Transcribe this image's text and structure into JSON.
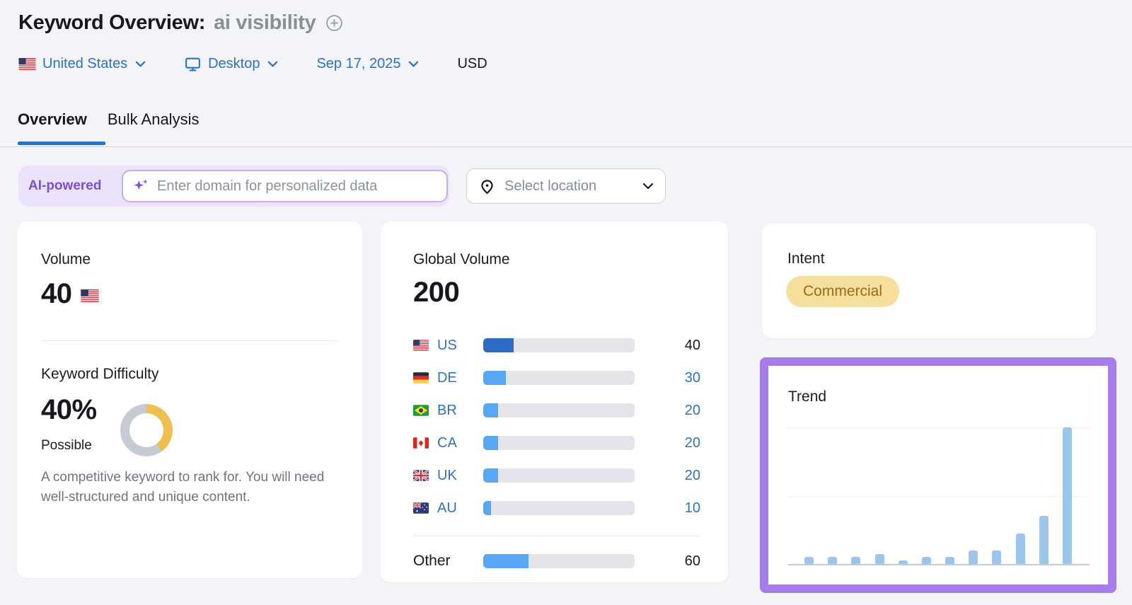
{
  "header": {
    "title": "Keyword Overview:",
    "keyword": "ai visibility",
    "add_icon": "plus-circle-icon",
    "filters": {
      "country": "United States",
      "country_flag_icon": "us-flag-icon",
      "device": "Desktop",
      "device_icon": "monitor-icon",
      "date": "Sep 17, 2025",
      "currency": "USD"
    },
    "tabs": [
      {
        "label": "Overview",
        "active": true
      },
      {
        "label": "Bulk Analysis",
        "active": false
      }
    ]
  },
  "ai_bar": {
    "badge": "AI-powered",
    "sparkle_icon": "sparkles-icon",
    "input_placeholder": "Enter domain for personalized data",
    "location_icon": "location-pin-icon",
    "location_button": "Select location",
    "chevron_icon": "chevron-down-icon"
  },
  "volume_card": {
    "title": "Volume",
    "value": "40",
    "flag_icon": "us-flag-icon",
    "kd_title": "Keyword Difficulty",
    "kd_value": "40%",
    "kd_percent": 40,
    "kd_label": "Possible",
    "kd_description": "A competitive keyword to rank for. You will need well-structured and unique content."
  },
  "global_volume_card": {
    "title": "Global Volume",
    "total": "200",
    "max": 200,
    "rows": [
      {
        "code": "US",
        "flag_icon": "us-flag-icon",
        "value": 40,
        "display": "40",
        "emphasis": true
      },
      {
        "code": "DE",
        "flag_icon": "de-flag-icon",
        "value": 30,
        "display": "30",
        "emphasis": false
      },
      {
        "code": "BR",
        "flag_icon": "br-flag-icon",
        "value": 20,
        "display": "20",
        "emphasis": false
      },
      {
        "code": "CA",
        "flag_icon": "ca-flag-icon",
        "value": 20,
        "display": "20",
        "emphasis": false
      },
      {
        "code": "UK",
        "flag_icon": "uk-flag-icon",
        "value": 20,
        "display": "20",
        "emphasis": false
      },
      {
        "code": "AU",
        "flag_icon": "au-flag-icon",
        "value": 10,
        "display": "10",
        "emphasis": false
      }
    ],
    "other": {
      "label": "Other",
      "value": 60,
      "display": "60"
    }
  },
  "intent_card": {
    "title": "Intent",
    "badge": "Commercial"
  },
  "trend_card": {
    "title": "Trend"
  },
  "chart_data": [
    {
      "type": "bar",
      "title": "Global Volume",
      "orientation": "horizontal",
      "categories": [
        "US",
        "DE",
        "BR",
        "CA",
        "UK",
        "AU",
        "Other"
      ],
      "values": [
        40,
        30,
        20,
        20,
        20,
        10,
        60
      ],
      "total": 200
    },
    {
      "type": "bar",
      "title": "Trend",
      "x": [
        1,
        2,
        3,
        4,
        5,
        6,
        7,
        8,
        9,
        10,
        11,
        12
      ],
      "values": [
        2,
        2,
        2,
        3,
        1,
        2,
        2,
        4,
        4,
        9,
        14,
        40
      ],
      "ylim": [
        0,
        40
      ],
      "grid": true,
      "legend": false,
      "xlabel": "",
      "ylabel": ""
    }
  ],
  "colors": {
    "accent_blue": "#2e70c2",
    "bar_dark_blue": "#2d6cc4",
    "bar_light_blue": "#58a7f3",
    "bar_track": "#e3e5ea",
    "trend_bar": "#9cc6e9",
    "highlight_purple": "#a67eea",
    "ai_purple": "#7b4ce0",
    "ai_pill_bg": "#ece3fb",
    "intent_bg": "#f5df9c",
    "intent_text": "#a06a10",
    "kd_yellow": "#eec051",
    "kd_gray": "#c5cad3",
    "page_bg": "#f3f4f8"
  }
}
